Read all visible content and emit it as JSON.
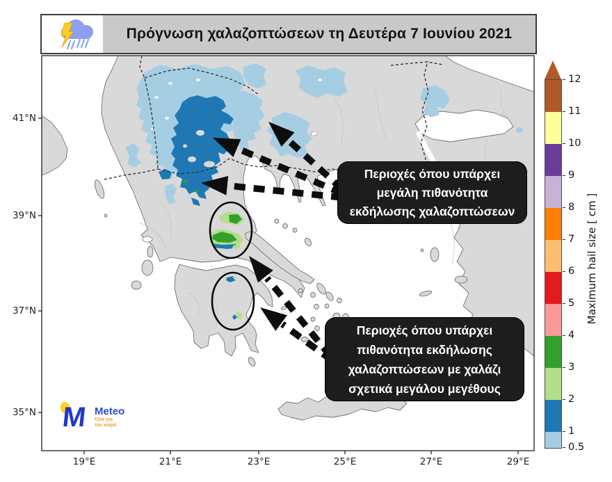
{
  "title_bar": {
    "title": "Πρόγνωση χαλαζοπτώσεων τη Δευτέρα 7 Ιουνίου 2021",
    "icon": "storm-cloud-lightning-rain-icon"
  },
  "callouts": {
    "high_probability": {
      "lines": [
        "Περιοχές όπου υπάρχει",
        "μεγάλη πιθανότητα",
        "εκδήλωσης χαλαζοπτώσεων"
      ]
    },
    "large_hail": {
      "lines": [
        "Περιοχές όπου υπάρχει",
        "πιθανότητα εκδήλωσης",
        "χαλαζοπτώσεων με χαλάζι",
        "σχετικά μεγάλου μεγέθους"
      ]
    }
  },
  "axes": {
    "x_ticks": [
      "19°E",
      "21°E",
      "23°E",
      "25°E",
      "27°E",
      "29°E"
    ],
    "y_ticks": [
      "41°N",
      "39°N",
      "37°N",
      "35°N"
    ]
  },
  "colorbar": {
    "label": "Maximum hail size [ cm ]",
    "ticks": [
      "12",
      "11",
      "10",
      "9",
      "8",
      "7",
      "6",
      "5",
      "4",
      "3",
      "2",
      "1",
      "0.5"
    ],
    "arrow_color": "#b15928",
    "segments": [
      {
        "range": "11-12",
        "color": "#b15928"
      },
      {
        "range": "10-11",
        "color": "#ffff99"
      },
      {
        "range": "9-10",
        "color": "#6a3d9a"
      },
      {
        "range": "8-9",
        "color": "#cab2d6"
      },
      {
        "range": "7-8",
        "color": "#ff7f00"
      },
      {
        "range": "6-7",
        "color": "#fdbf6f"
      },
      {
        "range": "5-6",
        "color": "#e31a1c"
      },
      {
        "range": "4-5",
        "color": "#fb9a99"
      },
      {
        "range": "3-4",
        "color": "#33a02c"
      },
      {
        "range": "2-3",
        "color": "#b2df8a"
      },
      {
        "range": "1-2",
        "color": "#1f78b4"
      },
      {
        "range": "0.5-1",
        "color": "#a6cee3"
      }
    ]
  },
  "map_colors": {
    "land": "#d9d9d9",
    "sea": "#ffffff",
    "hail_0_5_to_1_cm": "#a6cee3",
    "hail_1_to_2_cm": "#1f78b4",
    "hail_2_to_3_cm": "#b2df8a",
    "hail_3_to_4_cm": "#33a02c"
  },
  "logo": {
    "wordmark": "Meteo",
    "tagline_line1": "Όλα για",
    "tagline_line2": "τον καιρό"
  }
}
